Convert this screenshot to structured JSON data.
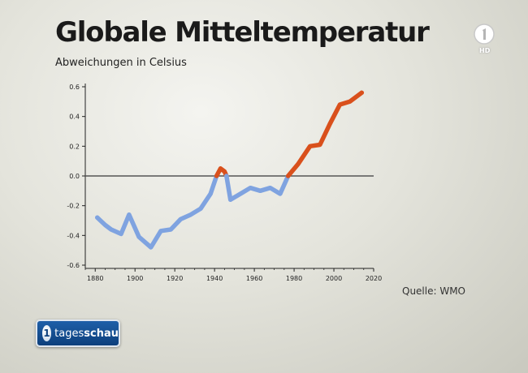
{
  "title": "Globale Mitteltemperatur",
  "subtitle": "Abweichungen in Celsius",
  "source": "Quelle: WMO",
  "logo": {
    "channel_icon": "ard-one-icon",
    "hd_label": "HD",
    "badge_prefix": "tages",
    "badge_bold": "schau",
    "badge_icon": "tagesschau-one-icon"
  },
  "colors": {
    "cold": "#7fa3e0",
    "warm": "#d9501c",
    "zero_line": "#555555",
    "axis": "#222222"
  },
  "chart_data": {
    "type": "line",
    "title": "Globale Mitteltemperatur",
    "ylabel": "Abweichungen in Celsius",
    "xlabel": "",
    "xlim": [
      1875,
      2020
    ],
    "ylim": [
      -0.6,
      0.6
    ],
    "xticks": [
      1880,
      1900,
      1920,
      1940,
      1960,
      1980,
      2000,
      2020
    ],
    "yticks": [
      0.6,
      0.4,
      0.2,
      0.0,
      -0.2,
      -0.4,
      -0.6
    ],
    "ytick_labels": [
      "0.6",
      "0.4",
      "0.2",
      "0.0",
      "-0.2",
      "-0.4",
      "-0.6"
    ],
    "grid": false,
    "reference_line": 0.0,
    "series": [
      {
        "color": "#7fa3e0",
        "x": [
          1881,
          1885,
          1888,
          1893,
          1897,
          1902,
          1908,
          1913,
          1918,
          1923,
          1928,
          1933,
          1938,
          1941
        ],
        "y": [
          -0.28,
          -0.33,
          -0.36,
          -0.39,
          -0.26,
          -0.41,
          -0.48,
          -0.37,
          -0.36,
          -0.29,
          -0.26,
          -0.22,
          -0.12,
          0.0
        ]
      },
      {
        "color": "#d9501c",
        "x": [
          1941,
          1943,
          1945,
          1946
        ],
        "y": [
          0.0,
          0.05,
          0.03,
          0.0
        ]
      },
      {
        "color": "#7fa3e0",
        "x": [
          1946,
          1948,
          1953,
          1958,
          1963,
          1968,
          1973,
          1977
        ],
        "y": [
          0.0,
          -0.16,
          -0.12,
          -0.08,
          -0.1,
          -0.08,
          -0.12,
          0.0
        ]
      },
      {
        "color": "#d9501c",
        "x": [
          1977,
          1982,
          1988,
          1993,
          1998,
          2003,
          2008,
          2014
        ],
        "y": [
          0.0,
          0.08,
          0.2,
          0.21,
          0.35,
          0.48,
          0.5,
          0.56
        ]
      }
    ]
  }
}
